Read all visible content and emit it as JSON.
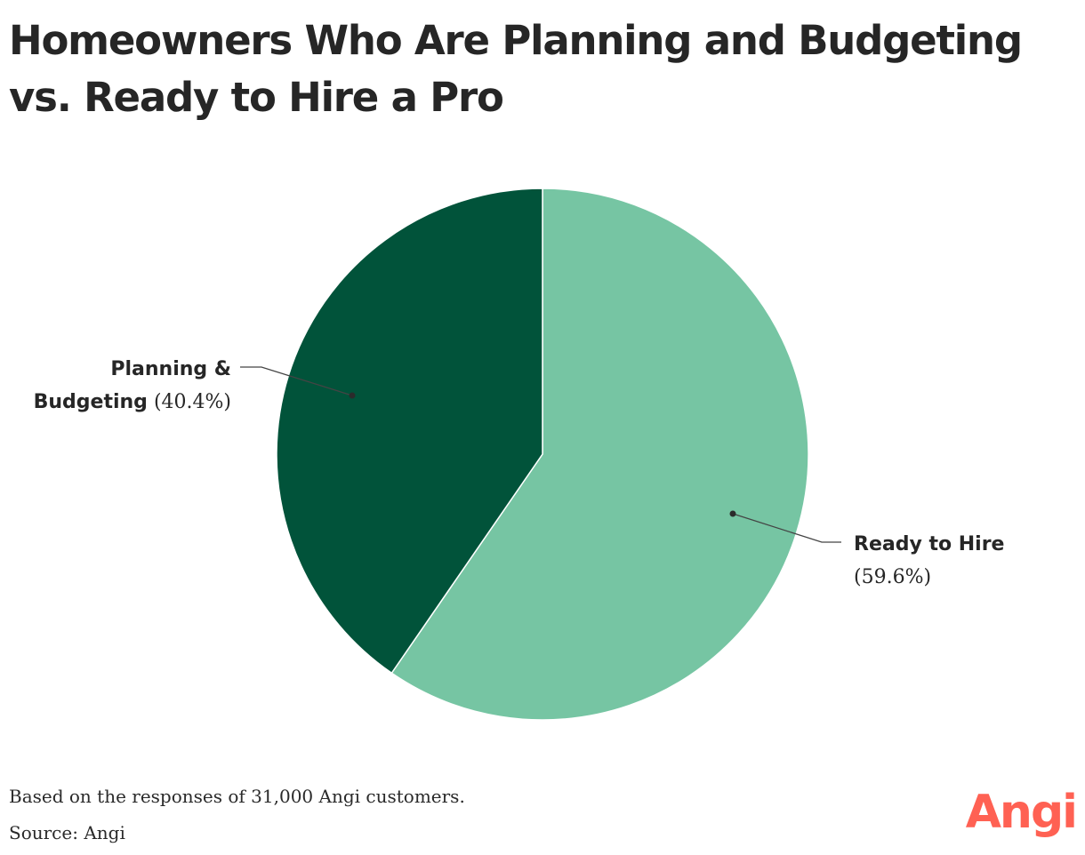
{
  "chart_data": {
    "type": "pie",
    "title": "Homeowners Who Are Planning and Budgeting vs. Ready to Hire a Pro",
    "slices": [
      {
        "id": "ready",
        "name": "Ready to Hire",
        "value": 59.6,
        "value_label": "(59.6%)",
        "color": "#76c5a3"
      },
      {
        "id": "planning",
        "name_line1": "Planning &",
        "name_line2": "Budgeting",
        "value": 40.4,
        "value_label": "(40.4%)",
        "color": "#01533a"
      }
    ],
    "start_angle_deg": 0,
    "direction": "clockwise",
    "legend": "none"
  },
  "footer": {
    "note": "Based on the responses of 31,000 Angi customers.",
    "source": "Source: Angi"
  },
  "logo": {
    "text": "Angi",
    "color": "#ff6153"
  }
}
